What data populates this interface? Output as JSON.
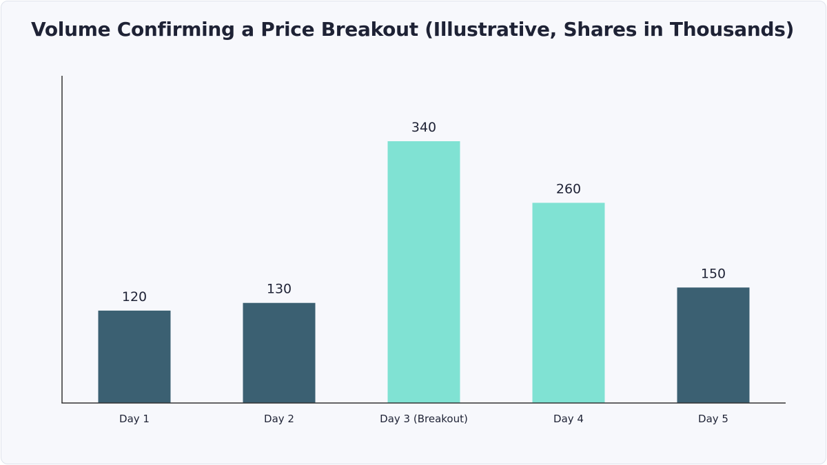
{
  "chart_data": {
    "type": "bar",
    "title": "Volume Confirming a Price Breakout (Illustrative, Shares in Thousands)",
    "xlabel": "",
    "ylabel": "",
    "categories": [
      "Day 1",
      "Day 2",
      "Day 3 (Breakout)",
      "Day 4",
      "Day 5"
    ],
    "values": [
      120,
      130,
      340,
      260,
      150
    ],
    "highlighted": [
      false,
      false,
      true,
      true,
      false
    ],
    "ylim": [
      0,
      420
    ],
    "grid": false,
    "legend": "none",
    "colors": {
      "base": "#3b6072",
      "highlight": "#80e2d3",
      "axis": "#333333",
      "text": "#1e2235"
    }
  }
}
